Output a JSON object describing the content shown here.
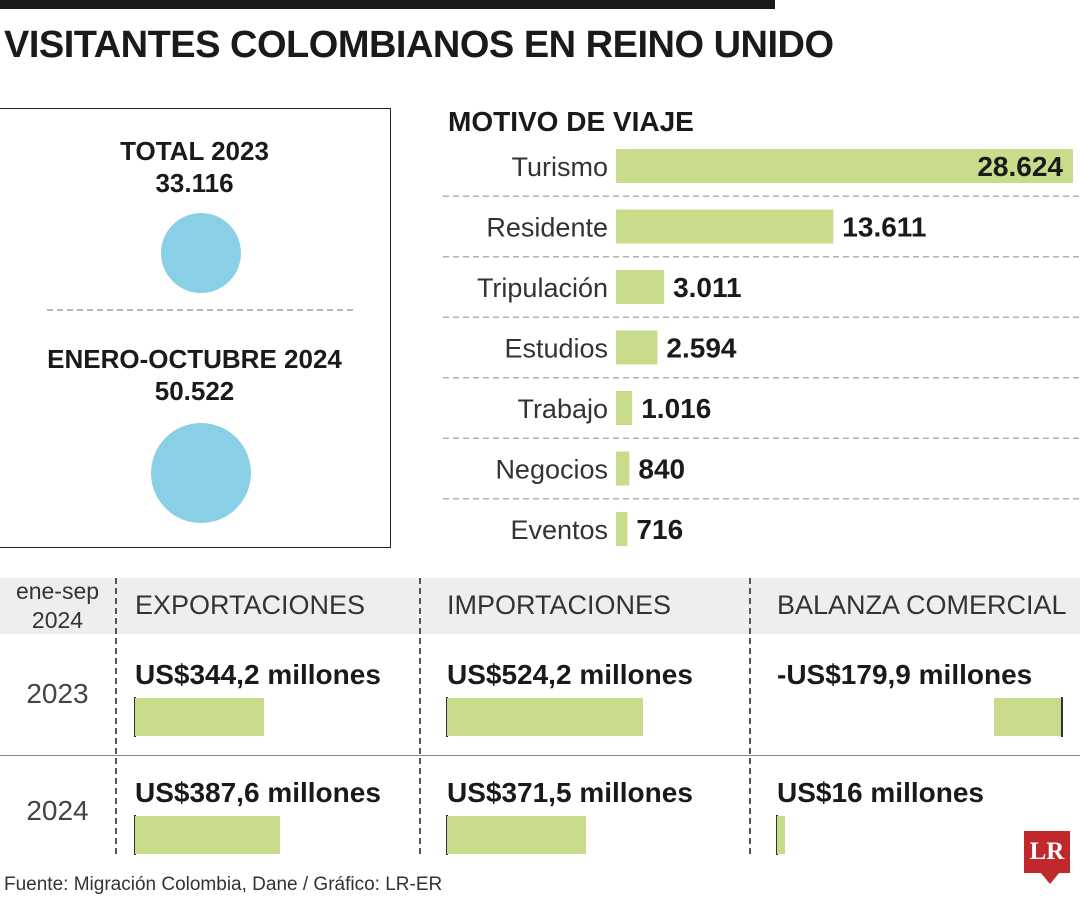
{
  "title": "VISITANTES COLOMBIANOS EN REINO UNIDO",
  "colors": {
    "bar": "#c8dc8c",
    "bubble": "#89cfe6",
    "logo": "#c0282e"
  },
  "totals": [
    {
      "label": "TOTAL 2023",
      "value": "33.116",
      "amount": 33116
    },
    {
      "label": "ENERO-OCTUBRE 2024",
      "value": "50.522",
      "amount": 50522
    }
  ],
  "chart_data": [
    {
      "type": "bar",
      "orientation": "horizontal",
      "title": "MOTIVO DE VIAJE",
      "categories": [
        "Turismo",
        "Residente",
        "Tripulación",
        "Estudios",
        "Trabajo",
        "Negocios",
        "Eventos"
      ],
      "values": [
        28624,
        13611,
        3011,
        2594,
        1016,
        840,
        716
      ],
      "labels": [
        "28.624",
        "13.611",
        "3.011",
        "2.594",
        "1.016",
        "840",
        "716"
      ]
    }
  ],
  "trade": {
    "period_line1": "ene-sep",
    "period_line2": "2024",
    "columns": [
      "EXPORTACIONES",
      "IMPORTACIONES",
      "BALANZA COMERCIAL"
    ],
    "rows": [
      {
        "year": "2023",
        "labels": [
          "US$344,2 millones",
          "US$524,2 millones",
          "-US$179,9 millones"
        ],
        "values": [
          344.2,
          524.2,
          -179.9
        ]
      },
      {
        "year": "2024",
        "labels": [
          "US$387,6 millones",
          "US$371,5 millones",
          "US$16 millones"
        ],
        "values": [
          387.6,
          371.5,
          16
        ]
      }
    ]
  },
  "source": "Fuente: Migración Colombia, Dane / Gráfico: LR-ER",
  "logo_text": "LR"
}
